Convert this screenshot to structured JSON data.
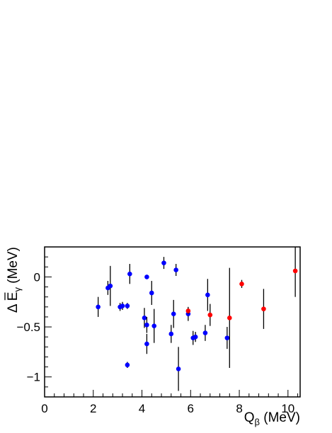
{
  "chart_data": {
    "type": "scatter",
    "title": "",
    "xlabel": "Q",
    "xlabel_sub": "β",
    "xlabel_unit": "(MeV)",
    "ylabel": "Δ E",
    "ylabel_sub": "γ",
    "ylabel_unit": "(MeV)",
    "xlim": [
      0,
      10.5
    ],
    "ylim": [
      -1.2,
      0.3
    ],
    "x_ticks": [
      0,
      2,
      4,
      6,
      8,
      10
    ],
    "x_tick_labels": [
      "0",
      "2",
      "4",
      "6",
      "8",
      "10"
    ],
    "y_ticks": [
      -1,
      -0.5,
      0
    ],
    "y_tick_labels": [
      "−1",
      "−0.5",
      "0"
    ],
    "grid": false,
    "legend": "none",
    "series": [
      {
        "color": "#0000ff",
        "points": [
          {
            "x": 2.2,
            "y": -0.3,
            "err": 0.1
          },
          {
            "x": 2.6,
            "y": -0.11,
            "err": 0.07
          },
          {
            "x": 2.7,
            "y": -0.09,
            "err": 0.2
          },
          {
            "x": 3.1,
            "y": -0.3,
            "err": 0.04
          },
          {
            "x": 3.2,
            "y": -0.29,
            "err": 0.04
          },
          {
            "x": 3.4,
            "y": -0.29,
            "err": 0.03
          },
          {
            "x": 3.4,
            "y": -0.88,
            "err": 0.03
          },
          {
            "x": 3.5,
            "y": 0.03,
            "err": 0.1
          },
          {
            "x": 4.1,
            "y": -0.41,
            "err": 0.1
          },
          {
            "x": 4.2,
            "y": 0.0,
            "err": 0.01
          },
          {
            "x": 4.2,
            "y": -0.48,
            "err": 0.08
          },
          {
            "x": 4.2,
            "y": -0.67,
            "err": 0.1
          },
          {
            "x": 4.4,
            "y": -0.16,
            "err": 0.12
          },
          {
            "x": 4.5,
            "y": -0.49,
            "err": 0.17
          },
          {
            "x": 4.9,
            "y": 0.14,
            "err": 0.06
          },
          {
            "x": 5.2,
            "y": -0.57,
            "err": 0.09
          },
          {
            "x": 5.3,
            "y": -0.37,
            "err": 0.14
          },
          {
            "x": 5.4,
            "y": 0.07,
            "err": 0.06
          },
          {
            "x": 5.5,
            "y": -0.92,
            "err": 0.22
          },
          {
            "x": 5.9,
            "y": -0.37,
            "err": 0.07
          },
          {
            "x": 6.1,
            "y": -0.61,
            "err": 0.07
          },
          {
            "x": 6.2,
            "y": -0.6,
            "err": 0.05
          },
          {
            "x": 6.6,
            "y": -0.56,
            "err": 0.08
          },
          {
            "x": 6.7,
            "y": -0.18,
            "err": 0.16
          },
          {
            "x": 7.5,
            "y": -0.61,
            "err": 0.11
          }
        ]
      },
      {
        "color": "#ff0000",
        "points": [
          {
            "x": 5.9,
            "y": -0.34,
            "err": 0.03
          },
          {
            "x": 6.8,
            "y": -0.38,
            "err": 0.11
          },
          {
            "x": 7.6,
            "y": -0.41,
            "err": 0.5
          },
          {
            "x": 8.1,
            "y": -0.07,
            "err": 0.04
          },
          {
            "x": 9.0,
            "y": -0.32,
            "err": 0.2
          },
          {
            "x": 10.3,
            "y": 0.06,
            "err": 0.26
          }
        ]
      }
    ]
  }
}
